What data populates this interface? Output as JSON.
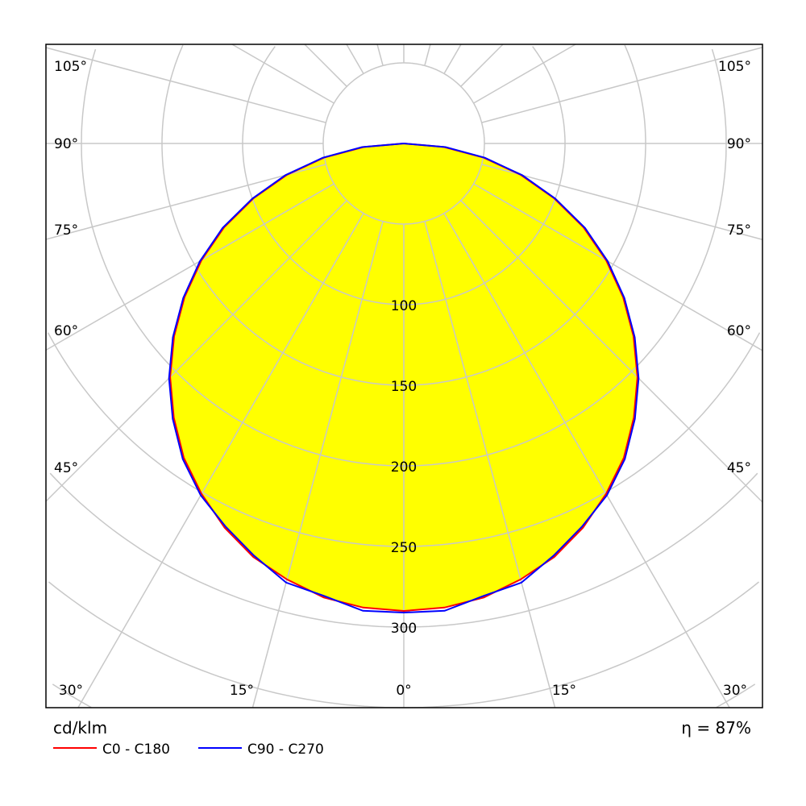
{
  "chart_data": {
    "type": "polar",
    "unit": "cd/klm",
    "efficiency": "η = 87%",
    "radial_ticks": [
      "100",
      "150",
      "200",
      "250",
      "300"
    ],
    "radial_tick_values": [
      100,
      150,
      200,
      250,
      300
    ],
    "angle_labels_left": [
      "105°",
      "90°",
      "75°",
      "60°",
      "45°"
    ],
    "angle_labels_bottom": [
      "30°",
      "15°",
      "0°",
      "15°",
      "30°"
    ],
    "angles_deg": [
      0,
      5,
      10,
      15,
      20,
      25,
      30,
      35,
      40,
      45,
      50,
      55,
      60,
      65,
      70,
      75,
      80,
      85,
      90
    ],
    "series": [
      {
        "name": "C0 - C180",
        "color": "#ff0000",
        "values": [
          290,
          289,
          286,
          280,
          273,
          263,
          251,
          238,
          222,
          205,
          186,
          166,
          145,
          123,
          99,
          75,
          50,
          25,
          0
        ]
      },
      {
        "name": "C90 - C270",
        "color": "#0000ff",
        "values": [
          291,
          291,
          285,
          282,
          272,
          262,
          252,
          239,
          223,
          206,
          187,
          167,
          146,
          124,
          100,
          76,
          51,
          26,
          0
        ]
      }
    ],
    "fill_color": "#ffff00",
    "grid": true
  }
}
